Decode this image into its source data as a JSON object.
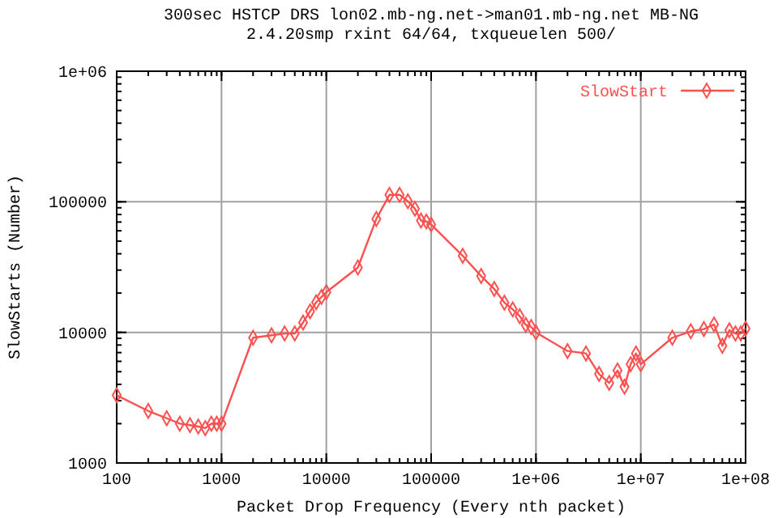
{
  "chart_data": {
    "type": "line",
    "title": "300sec HSTCP DRS lon02.mb-ng.net->man01.mb-ng.net MB-NG",
    "subtitle": "2.4.20smp rxint 64/64, txqueuelen 500/",
    "xlabel": "Packet Drop Frequency (Every nth packet)",
    "ylabel": "SlowStarts (Number)",
    "log": "xy",
    "grid": true,
    "legend": "top right",
    "marker": "diamond",
    "line_style": "solid",
    "xlim": [
      100,
      100000000
    ],
    "xticks": [
      100,
      1000,
      10000,
      100000,
      {
        "value": 1000000,
        "label": "1e+06"
      },
      {
        "value": 10000000,
        "label": "1e+07"
      },
      {
        "value": 100000000,
        "label": "1e+08"
      }
    ],
    "ylim": [
      1000,
      1000000
    ],
    "yticks": [
      1000,
      10000,
      100000,
      {
        "value": 1000000,
        "label": "1e+06"
      }
    ],
    "series": [
      {
        "name": "SlowStart",
        "color": "#ff5050",
        "x": [
          100,
          200,
          300,
          400,
          500,
          600,
          700,
          800,
          900,
          1000,
          2000,
          3000,
          4000,
          5000,
          6000,
          7000,
          8000,
          9000,
          10000,
          20000,
          30000,
          40000,
          50000,
          60000,
          70000,
          80000,
          90000,
          100000,
          200000,
          300000,
          400000,
          500000,
          600000,
          700000,
          800000,
          900000,
          1000000,
          2000000,
          3000000,
          4000000,
          5000000,
          6000000,
          7000000,
          8000000,
          9000000,
          10000000,
          20000000,
          30000000,
          40000000,
          50000000,
          60000000,
          70000000,
          80000000,
          90000000,
          100000000
        ],
        "values": [
          3300,
          2500,
          2200,
          2000,
          1950,
          1900,
          1850,
          2000,
          2000,
          2000,
          9100,
          9500,
          9800,
          9800,
          11900,
          14500,
          17000,
          18700,
          20300,
          31400,
          74000,
          113000,
          113000,
          101000,
          88500,
          71800,
          70700,
          67000,
          38600,
          27000,
          21500,
          16900,
          15000,
          13300,
          11400,
          11000,
          10000,
          7200,
          6900,
          4800,
          4100,
          5100,
          3840,
          5700,
          6900,
          5700,
          9100,
          10200,
          10600,
          11500,
          7900,
          10400,
          9800,
          9800,
          10700
        ]
      }
    ]
  }
}
